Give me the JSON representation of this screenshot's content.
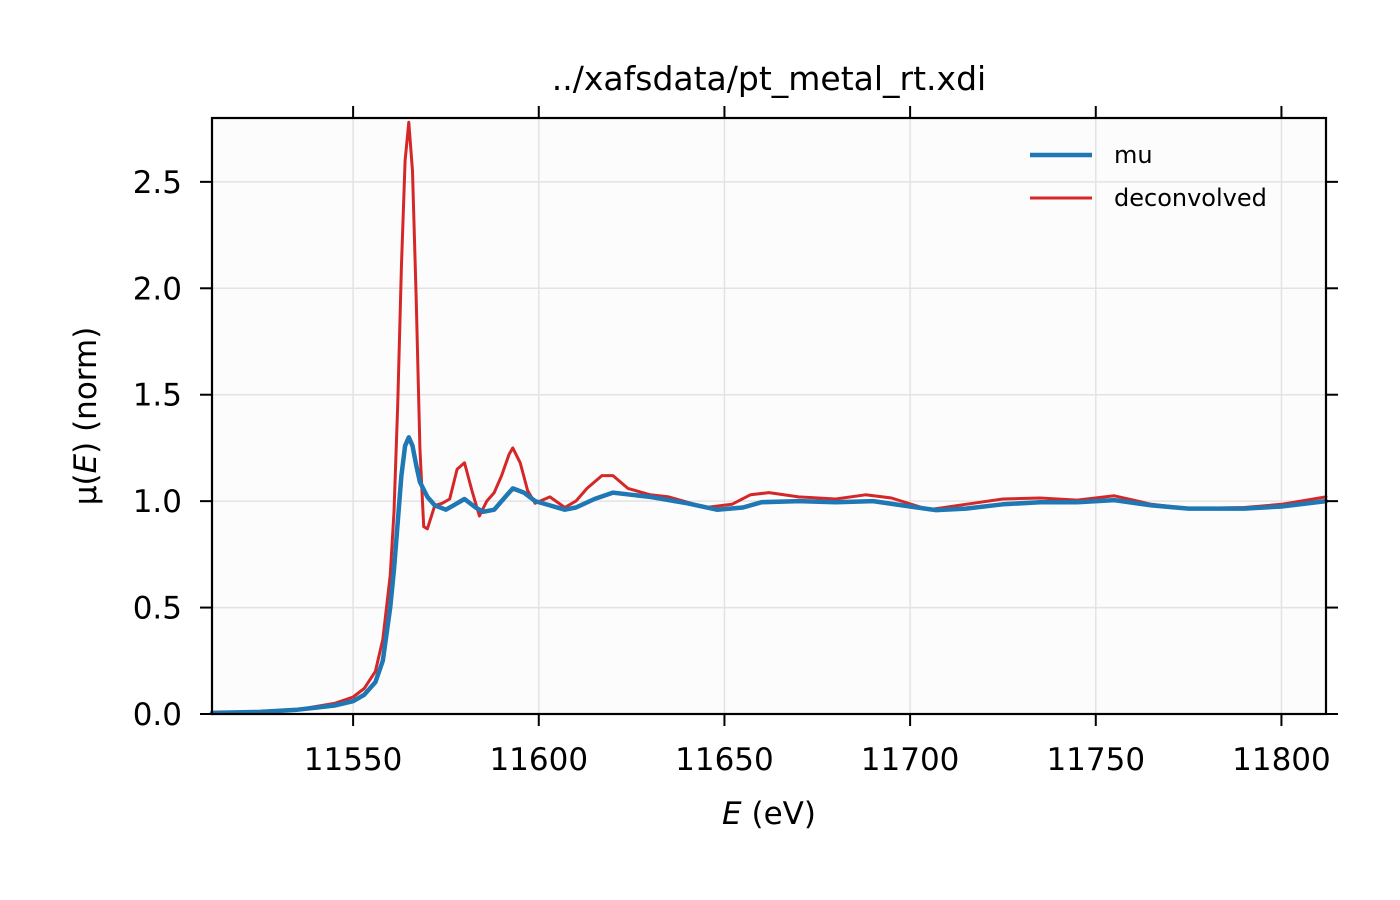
{
  "chart_data": {
    "type": "line",
    "title": "../xafsdata/pt_metal_rt.xdi",
    "xlabel_italic": "E",
    "xlabel_rest": " (eV)",
    "ylabel_pre": "μ(",
    "ylabel_italic": "E",
    "ylabel_post": ") (norm)",
    "xlim": [
      11512,
      11812
    ],
    "ylim": [
      0,
      2.8
    ],
    "xticks": [
      11550,
      11600,
      11650,
      11700,
      11750,
      11800
    ],
    "yticks": [
      0.0,
      0.5,
      1.0,
      1.5,
      2.0,
      2.5
    ],
    "xtick_labels": [
      "11550",
      "11600",
      "11650",
      "11700",
      "11750",
      "11800"
    ],
    "ytick_labels": [
      "0.0",
      "0.5",
      "1.0",
      "1.5",
      "2.0",
      "2.5"
    ],
    "grid": true,
    "legend_position": "top-right",
    "series": [
      {
        "name": "mu",
        "color": "#1f77b4",
        "points": [
          [
            11512,
            0.005
          ],
          [
            11525,
            0.01
          ],
          [
            11535,
            0.02
          ],
          [
            11540,
            0.03
          ],
          [
            11545,
            0.04
          ],
          [
            11550,
            0.06
          ],
          [
            11553,
            0.09
          ],
          [
            11556,
            0.15
          ],
          [
            11558,
            0.25
          ],
          [
            11560,
            0.5
          ],
          [
            11561,
            0.68
          ],
          [
            11562,
            0.9
          ],
          [
            11563,
            1.12
          ],
          [
            11564,
            1.26
          ],
          [
            11565,
            1.3
          ],
          [
            11566,
            1.26
          ],
          [
            11567,
            1.17
          ],
          [
            11568,
            1.09
          ],
          [
            11570,
            1.02
          ],
          [
            11572,
            0.98
          ],
          [
            11575,
            0.96
          ],
          [
            11577,
            0.98
          ],
          [
            11580,
            1.01
          ],
          [
            11583,
            0.97
          ],
          [
            11585,
            0.95
          ],
          [
            11588,
            0.96
          ],
          [
            11590,
            1.0
          ],
          [
            11593,
            1.06
          ],
          [
            11596,
            1.04
          ],
          [
            11599,
            1.0
          ],
          [
            11603,
            0.98
          ],
          [
            11607,
            0.96
          ],
          [
            11610,
            0.97
          ],
          [
            11615,
            1.01
          ],
          [
            11620,
            1.04
          ],
          [
            11625,
            1.03
          ],
          [
            11630,
            1.02
          ],
          [
            11640,
            0.99
          ],
          [
            11648,
            0.96
          ],
          [
            11655,
            0.97
          ],
          [
            11660,
            0.995
          ],
          [
            11670,
            1.0
          ],
          [
            11680,
            0.995
          ],
          [
            11690,
            1.0
          ],
          [
            11700,
            0.975
          ],
          [
            11707,
            0.958
          ],
          [
            11715,
            0.965
          ],
          [
            11725,
            0.985
          ],
          [
            11735,
            0.995
          ],
          [
            11745,
            0.995
          ],
          [
            11755,
            1.005
          ],
          [
            11765,
            0.98
          ],
          [
            11775,
            0.965
          ],
          [
            11790,
            0.965
          ],
          [
            11800,
            0.975
          ],
          [
            11812,
            1.0
          ]
        ]
      },
      {
        "name": "deconvolved",
        "color": "#d62728",
        "points": [
          [
            11512,
            0.005
          ],
          [
            11525,
            0.01
          ],
          [
            11535,
            0.02
          ],
          [
            11540,
            0.035
          ],
          [
            11545,
            0.05
          ],
          [
            11550,
            0.08
          ],
          [
            11553,
            0.12
          ],
          [
            11556,
            0.2
          ],
          [
            11558,
            0.35
          ],
          [
            11560,
            0.65
          ],
          [
            11561,
            0.95
          ],
          [
            11562,
            1.45
          ],
          [
            11563,
            2.1
          ],
          [
            11564,
            2.6
          ],
          [
            11565,
            2.78
          ],
          [
            11566,
            2.55
          ],
          [
            11567,
            1.95
          ],
          [
            11568,
            1.25
          ],
          [
            11569,
            0.88
          ],
          [
            11570,
            0.87
          ],
          [
            11572,
            0.98
          ],
          [
            11574,
            0.99
          ],
          [
            11576,
            1.01
          ],
          [
            11578,
            1.15
          ],
          [
            11580,
            1.18
          ],
          [
            11582,
            1.05
          ],
          [
            11584,
            0.93
          ],
          [
            11586,
            1.0
          ],
          [
            11588,
            1.04
          ],
          [
            11590,
            1.12
          ],
          [
            11592,
            1.22
          ],
          [
            11593,
            1.25
          ],
          [
            11595,
            1.18
          ],
          [
            11597,
            1.05
          ],
          [
            11599,
            0.99
          ],
          [
            11603,
            1.02
          ],
          [
            11607,
            0.97
          ],
          [
            11610,
            1.0
          ],
          [
            11613,
            1.06
          ],
          [
            11617,
            1.12
          ],
          [
            11620,
            1.12
          ],
          [
            11624,
            1.06
          ],
          [
            11630,
            1.03
          ],
          [
            11635,
            1.02
          ],
          [
            11640,
            0.995
          ],
          [
            11645,
            0.97
          ],
          [
            11652,
            0.985
          ],
          [
            11657,
            1.03
          ],
          [
            11662,
            1.04
          ],
          [
            11670,
            1.02
          ],
          [
            11680,
            1.01
          ],
          [
            11688,
            1.03
          ],
          [
            11695,
            1.015
          ],
          [
            11705,
            0.96
          ],
          [
            11715,
            0.985
          ],
          [
            11725,
            1.01
          ],
          [
            11735,
            1.015
          ],
          [
            11745,
            1.005
          ],
          [
            11755,
            1.025
          ],
          [
            11765,
            0.985
          ],
          [
            11775,
            0.965
          ],
          [
            11790,
            0.97
          ],
          [
            11800,
            0.985
          ],
          [
            11812,
            1.02
          ]
        ]
      }
    ]
  }
}
